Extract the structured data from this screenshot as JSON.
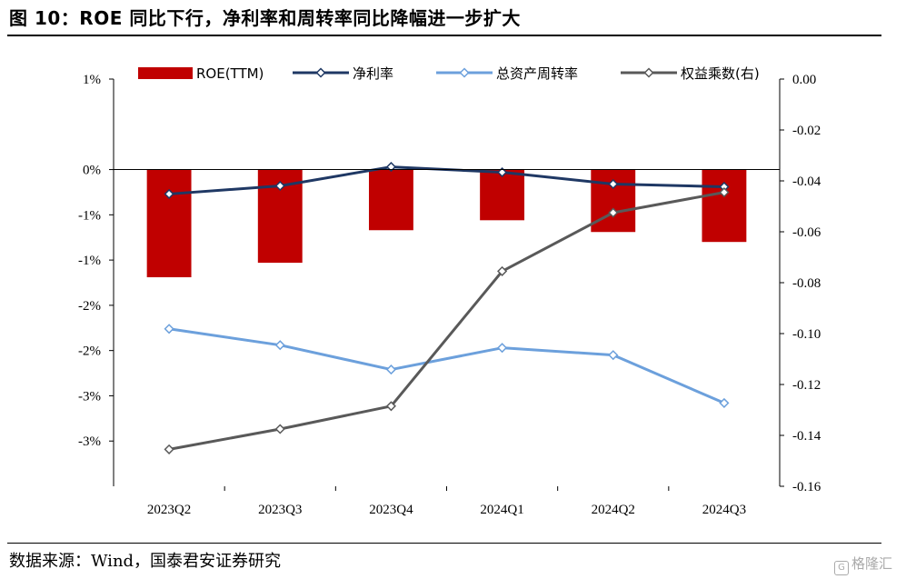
{
  "figure": {
    "title": "图 10：ROE 同比下行，净利率和周转率同比降幅进一步扩大",
    "source": "数据来源：Wind，国泰君安证券研究",
    "watermark": "格隆汇"
  },
  "chart_data": {
    "type": "bar+line",
    "categories": [
      "2023Q2",
      "2023Q3",
      "2023Q4",
      "2024Q1",
      "2024Q2",
      "2024Q3"
    ],
    "left_axis": {
      "range": [
        -0.035,
        0.01
      ],
      "ticks": [
        0.01,
        0.0,
        -0.005,
        -0.01,
        -0.015,
        -0.02,
        -0.025,
        -0.03
      ],
      "tick_labels": [
        "1%",
        "0%",
        "-1%",
        "-1%",
        "-2%",
        "-2%",
        "-3%",
        "-3%"
      ]
    },
    "right_axis": {
      "range": [
        -0.16,
        0.0
      ],
      "ticks": [
        0.0,
        -0.02,
        -0.04,
        -0.06,
        -0.08,
        -0.1,
        -0.12,
        -0.14,
        -0.16
      ],
      "tick_labels": [
        "0.00",
        "-0.02",
        "-0.04",
        "-0.06",
        "-0.08",
        "-0.10",
        "-0.12",
        "-0.14",
        "-0.16"
      ]
    },
    "series": [
      {
        "name": "ROE(TTM)",
        "kind": "bar",
        "axis": "left",
        "color": "#c00000",
        "values": [
          -0.0119,
          -0.0103,
          -0.0067,
          -0.0056,
          -0.0069,
          -0.008
        ]
      },
      {
        "name": "净利率",
        "kind": "line",
        "axis": "left",
        "color": "#1f3864",
        "values": [
          -0.0027,
          -0.0018,
          0.0003,
          -0.0003,
          -0.0016,
          -0.0019
        ]
      },
      {
        "name": "总资产周转率",
        "kind": "line",
        "axis": "left",
        "color": "#6ca0dc",
        "values": [
          -0.0176,
          -0.0194,
          -0.0221,
          -0.0197,
          -0.0205,
          -0.0258
        ]
      },
      {
        "name": "权益乘数(右)",
        "kind": "line",
        "axis": "right",
        "color": "#595959",
        "values": [
          -0.1455,
          -0.1375,
          -0.1285,
          -0.0755,
          -0.0525,
          -0.0445
        ]
      }
    ]
  }
}
